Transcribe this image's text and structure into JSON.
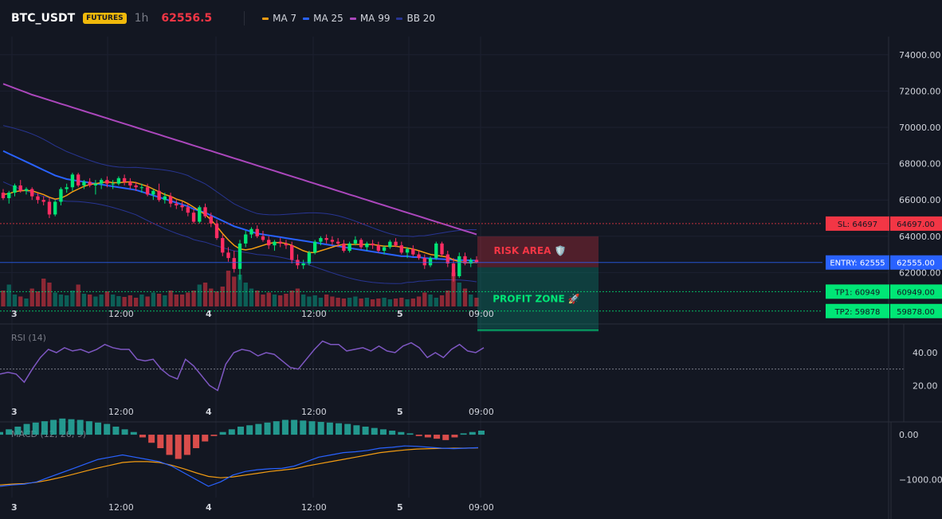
{
  "header": {
    "symbol": "BTC_USDT",
    "badge": "FUTURES",
    "interval": "1h",
    "last_price": "62556.5",
    "indicators": [
      {
        "label": "MA 7",
        "color": "#f39c12"
      },
      {
        "label": "MA 25",
        "color": "#2962ff"
      },
      {
        "label": "MA 99",
        "color": "#ab47bc"
      },
      {
        "label": "BB 20",
        "color": "#283593"
      }
    ]
  },
  "colors": {
    "background": "#131722",
    "up": "#089981",
    "down": "#f23645",
    "ma7": "#f39c12",
    "ma25": "#2962ff",
    "ma99": "#ab47bc",
    "bb": "#283593",
    "rsi": "#7e57c2",
    "macd_line": "#2962ff",
    "signal_line": "#f39c12"
  },
  "price_axis": {
    "ticks": [
      "74000.00",
      "72000.00",
      "70000.00",
      "68000.00",
      "66000.00",
      "64000.00",
      "62000.00"
    ],
    "range": [
      60000,
      75000
    ]
  },
  "price_labels": {
    "sl": {
      "left": "SL: 64697",
      "right": "64697.00",
      "value": 64697,
      "color": "#f23645"
    },
    "entry": {
      "left": "ENTRY: 62555",
      "right": "62555.00",
      "value": 62555,
      "color": "#2962ff"
    },
    "tp1": {
      "left": "TP1: 60949",
      "right": "60949.00",
      "value": 60949,
      "color": "#00e676"
    },
    "tp2": {
      "left": "TP2: 59878",
      "right": "59878.00",
      "value": 59878,
      "color": "#00e676"
    }
  },
  "zones": {
    "risk": {
      "label": "RISK AREA 🛡️"
    },
    "profit": {
      "label": "PROFIT ZONE 🚀"
    }
  },
  "time_axis": [
    "3",
    "12:00",
    "4",
    "12:00",
    "5",
    "09:00"
  ],
  "rsi": {
    "label": "RSI (14)",
    "ticks": [
      "40.00",
      "20.00"
    ],
    "range": [
      10,
      55
    ],
    "midline": 30
  },
  "macd": {
    "label": "MACD (12, 26, 9)",
    "ticks": [
      "0.00",
      "−1000.00"
    ],
    "range": [
      -1400,
      250
    ]
  },
  "chart_data": {
    "type": "candlestick",
    "candles": [
      [
        66400,
        66600,
        66000,
        66100
      ],
      [
        66100,
        66500,
        65800,
        66400
      ],
      [
        66400,
        66900,
        66200,
        66800
      ],
      [
        66800,
        67100,
        66400,
        66500
      ],
      [
        66500,
        66700,
        66300,
        66600
      ],
      [
        66600,
        66700,
        66000,
        66200
      ],
      [
        66200,
        66400,
        65800,
        66000
      ],
      [
        66000,
        66200,
        65700,
        65900
      ],
      [
        65900,
        66100,
        65000,
        65200
      ],
      [
        65200,
        66000,
        65100,
        65900
      ],
      [
        65900,
        66700,
        65700,
        66600
      ],
      [
        66600,
        66900,
        66400,
        66700
      ],
      [
        66700,
        67500,
        66500,
        67400
      ],
      [
        67400,
        67500,
        66700,
        66800
      ],
      [
        66800,
        67100,
        66600,
        67000
      ],
      [
        67000,
        67200,
        66700,
        66800
      ],
      [
        66800,
        67100,
        66300,
        66900
      ],
      [
        66900,
        67200,
        66600,
        67100
      ],
      [
        67100,
        67300,
        66700,
        66900
      ],
      [
        66900,
        67100,
        66600,
        66900
      ],
      [
        66900,
        67300,
        66800,
        67200
      ],
      [
        67200,
        67400,
        66800,
        67000
      ],
      [
        67000,
        67200,
        66600,
        66800
      ],
      [
        66800,
        67000,
        66500,
        66700
      ],
      [
        66700,
        66900,
        66400,
        66700
      ],
      [
        66700,
        66900,
        66200,
        66300
      ],
      [
        66300,
        66600,
        66000,
        66500
      ],
      [
        66500,
        66900,
        65900,
        66000
      ],
      [
        66000,
        66400,
        65800,
        66200
      ],
      [
        66200,
        66400,
        65600,
        65800
      ],
      [
        65800,
        66000,
        65500,
        65700
      ],
      [
        65700,
        65900,
        65400,
        65600
      ],
      [
        65600,
        65800,
        65100,
        65300
      ],
      [
        65300,
        65500,
        64700,
        64800
      ],
      [
        64800,
        65700,
        64700,
        65600
      ],
      [
        65600,
        65800,
        65000,
        65100
      ],
      [
        65100,
        65300,
        64500,
        64700
      ],
      [
        64700,
        64900,
        63800,
        63900
      ],
      [
        63900,
        64100,
        62900,
        63100
      ],
      [
        63100,
        63400,
        62600,
        62800
      ],
      [
        62800,
        63200,
        62000,
        62200
      ],
      [
        62200,
        63800,
        61600,
        63600
      ],
      [
        63600,
        64300,
        63400,
        64100
      ],
      [
        64100,
        64500,
        63900,
        64400
      ],
      [
        64400,
        64600,
        63900,
        64000
      ],
      [
        64000,
        64300,
        63700,
        63800
      ],
      [
        63800,
        64000,
        63300,
        63500
      ],
      [
        63500,
        63800,
        63200,
        63700
      ],
      [
        63700,
        63900,
        63400,
        63600
      ],
      [
        63600,
        63800,
        63300,
        63500
      ],
      [
        63500,
        63700,
        62500,
        62700
      ],
      [
        62700,
        63000,
        62200,
        62400
      ],
      [
        62400,
        62700,
        62200,
        62500
      ],
      [
        62500,
        63200,
        62400,
        63100
      ],
      [
        63100,
        63800,
        63000,
        63700
      ],
      [
        63700,
        64000,
        63500,
        63900
      ],
      [
        63900,
        64100,
        63600,
        63800
      ],
      [
        63800,
        64000,
        63500,
        63700
      ],
      [
        63700,
        63900,
        63400,
        63600
      ],
      [
        63600,
        63800,
        63100,
        63200
      ],
      [
        63200,
        63700,
        63100,
        63600
      ],
      [
        63600,
        64000,
        63500,
        63800
      ],
      [
        63800,
        63900,
        63300,
        63400
      ],
      [
        63400,
        63700,
        63200,
        63600
      ],
      [
        63600,
        63800,
        63300,
        63500
      ],
      [
        63500,
        63700,
        63100,
        63200
      ],
      [
        63200,
        63500,
        63000,
        63400
      ],
      [
        63400,
        63800,
        63300,
        63700
      ],
      [
        63700,
        63900,
        63400,
        63500
      ],
      [
        63500,
        63700,
        63000,
        63100
      ],
      [
        63100,
        63400,
        62800,
        63300
      ],
      [
        63300,
        63500,
        62900,
        63000
      ],
      [
        63000,
        63200,
        62700,
        62800
      ],
      [
        62800,
        63000,
        62200,
        62400
      ],
      [
        62400,
        62900,
        62300,
        62800
      ],
      [
        62800,
        63700,
        62700,
        63600
      ],
      [
        63600,
        63700,
        62900,
        63000
      ],
      [
        63000,
        63200,
        62300,
        62500
      ],
      [
        62500,
        62800,
        61500,
        61800
      ],
      [
        61800,
        63100,
        61700,
        62900
      ],
      [
        62900,
        63100,
        62400,
        62500
      ],
      [
        62500,
        62800,
        62300,
        62700
      ],
      [
        62700,
        62900,
        62500,
        62556
      ]
    ],
    "ma7": [
      66300,
      66350,
      66450,
      66500,
      66520,
      66500,
      66400,
      66300,
      66150,
      66050,
      66100,
      66250,
      66450,
      66600,
      66750,
      66850,
      66900,
      66950,
      67000,
      66950,
      66950,
      66980,
      67000,
      66950,
      66850,
      66750,
      66600,
      66450,
      66300,
      66200,
      66050,
      65950,
      65800,
      65600,
      65400,
      65200,
      64900,
      64550,
      64150,
      63800,
      63500,
      63300,
      63250,
      63300,
      63400,
      63500,
      63600,
      63650,
      63650,
      63600,
      63500,
      63350,
      63200,
      63100,
      63100,
      63200,
      63300,
      63400,
      63500,
      63550,
      63550,
      63550,
      63550,
      63550,
      63550,
      63500,
      63450,
      63450,
      63450,
      63400,
      63350,
      63300,
      63200,
      63100,
      63000,
      62950,
      62900,
      62850,
      62700,
      62600,
      62550,
      62550,
      62560
    ],
    "ma25": [
      68700,
      68550,
      68400,
      68250,
      68100,
      67950,
      67800,
      67650,
      67500,
      67350,
      67250,
      67150,
      67100,
      67050,
      67000,
      66950,
      66900,
      66850,
      66800,
      66750,
      66700,
      66650,
      66600,
      66550,
      66450,
      66350,
      66250,
      66150,
      66050,
      65950,
      65850,
      65750,
      65650,
      65500,
      65400,
      65300,
      65150,
      65000,
      64850,
      64700,
      64550,
      64450,
      64350,
      64250,
      64150,
      64100,
      64050,
      64000,
      63950,
      63900,
      63850,
      63800,
      63750,
      63700,
      63650,
      63600,
      63550,
      63500,
      63450,
      63400,
      63350,
      63300,
      63250,
      63200,
      63150,
      63100,
      63050,
      63000,
      62950,
      62900,
      62900,
      62850,
      62850,
      62800,
      62780,
      62760,
      62740,
      62720,
      62700,
      62690,
      62680,
      62670,
      62660
    ],
    "ma99": [
      72400,
      72280,
      72160,
      72040,
      71920,
      71800,
      71700,
      71600,
      71500,
      71400,
      71300,
      71200,
      71100,
      71000,
      70900,
      70800,
      70700,
      70600,
      70500,
      70400,
      70300,
      70200,
      70100,
      70000,
      69900,
      69800,
      69700,
      69600,
      69500,
      69400,
      69300,
      69200,
      69100,
      69000,
      68900,
      68800,
      68700,
      68600,
      68500,
      68400,
      68300,
      68200,
      68100,
      68000,
      67900,
      67800,
      67700,
      67600,
      67500,
      67400,
      67300,
      67200,
      67100,
      67000,
      66900,
      66800,
      66700,
      66600,
      66500,
      66400,
      66300,
      66200,
      66100,
      66000,
      65900,
      65800,
      65700,
      65600,
      65500,
      65400,
      65300,
      65200,
      65100,
      65000,
      64900,
      64800,
      64700,
      64600,
      64500,
      64400,
      64300,
      64200,
      64100
    ],
    "volume": [
      40,
      55,
      30,
      25,
      20,
      45,
      38,
      70,
      60,
      35,
      30,
      28,
      40,
      55,
      32,
      30,
      25,
      30,
      38,
      30,
      26,
      24,
      28,
      22,
      30,
      25,
      35,
      32,
      28,
      40,
      30,
      30,
      35,
      40,
      55,
      60,
      45,
      38,
      50,
      90,
      75,
      80,
      60,
      45,
      40,
      30,
      35,
      30,
      28,
      32,
      40,
      45,
      30,
      25,
      28,
      22,
      30,
      25,
      22,
      20,
      22,
      25,
      20,
      22,
      18,
      20,
      22,
      18,
      20,
      22,
      18,
      20,
      25,
      35,
      30,
      22,
      28,
      40,
      85,
      60,
      45,
      30,
      22
    ],
    "rsi": [
      27,
      28,
      27,
      22,
      30,
      37,
      42,
      40,
      43,
      41,
      42,
      40,
      42,
      45,
      43,
      42,
      42,
      36,
      35,
      36,
      30,
      26,
      24,
      36,
      32,
      26,
      20,
      17,
      33,
      40,
      42,
      41,
      38,
      40,
      39,
      35,
      31,
      30,
      36,
      42,
      47,
      45,
      45,
      41,
      42,
      43,
      41,
      44,
      41,
      40,
      44,
      46,
      43,
      37,
      40,
      37,
      42,
      45,
      41,
      40,
      43
    ],
    "macd_hist": [
      20,
      40,
      60,
      80,
      90,
      100,
      110,
      120,
      115,
      110,
      100,
      90,
      80,
      60,
      40,
      20,
      -20,
      -60,
      -100,
      -150,
      -180,
      -150,
      -100,
      -50,
      -10,
      20,
      40,
      60,
      70,
      80,
      90,
      100,
      110,
      110,
      105,
      100,
      95,
      90,
      85,
      80,
      70,
      60,
      50,
      40,
      30,
      20,
      10,
      -10,
      -20,
      -30,
      -40,
      -20,
      10,
      20,
      30
    ],
    "macd_line": [
      -1150,
      -1120,
      -1100,
      -1050,
      -950,
      -850,
      -750,
      -650,
      -550,
      -500,
      -450,
      -500,
      -550,
      -600,
      -700,
      -850,
      -1000,
      -1150,
      -1050,
      -900,
      -820,
      -780,
      -760,
      -750,
      -700,
      -600,
      -500,
      -450,
      -400,
      -380,
      -350,
      -300,
      -280,
      -250,
      -260,
      -280,
      -300,
      -310,
      -300,
      -290
    ],
    "signal_line": [
      -1120,
      -1100,
      -1090,
      -1060,
      -1010,
      -950,
      -880,
      -810,
      -740,
      -680,
      -620,
      -600,
      -600,
      -620,
      -680,
      -760,
      -850,
      -930,
      -960,
      -940,
      -900,
      -860,
      -820,
      -790,
      -760,
      -700,
      -650,
      -600,
      -550,
      -500,
      -450,
      -400,
      -370,
      -340,
      -320,
      -310,
      -305,
      -300,
      -300,
      -295
    ]
  }
}
